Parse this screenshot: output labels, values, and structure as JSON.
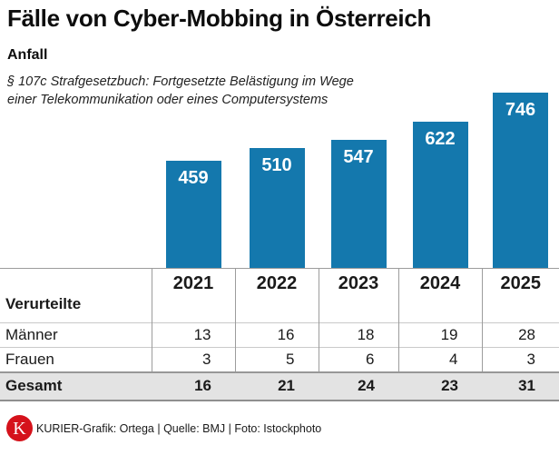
{
  "header": {
    "title": "Fälle von Cyber-Mobbing in Österreich",
    "section_label": "Anfall",
    "legal_note_line1": "§ 107c Strafgesetzbuch: Fortgesetzte Belästigung im Wege",
    "legal_note_line2": "einer Telekommunikation oder eines Computersystems"
  },
  "chart_data": {
    "type": "bar",
    "title": "Anfall — Fälle von Cyber-Mobbing in Österreich",
    "categories": [
      "2021",
      "2022",
      "2023",
      "2024",
      "2025"
    ],
    "values": [
      459,
      510,
      547,
      622,
      746
    ],
    "xlabel": "",
    "ylabel": "",
    "ylim": [
      0,
      760
    ],
    "grid": false,
    "legend": "none",
    "bar_labels_inside_top": true,
    "bar_color": "#1478ad",
    "bar_label_color": "#ffffff"
  },
  "table": {
    "row_header": "Verurteilte",
    "columns": [
      "2021",
      "2022",
      "2023",
      "2024",
      "2025"
    ],
    "rows": [
      {
        "label": "Männer",
        "values": [
          "13",
          "16",
          "18",
          "19",
          "28"
        ],
        "total": false
      },
      {
        "label": "Frauen",
        "values": [
          "3",
          "5",
          "6",
          "4",
          "3"
        ],
        "total": false
      },
      {
        "label": "Gesamt",
        "values": [
          "16",
          "21",
          "24",
          "23",
          "31"
        ],
        "total": true
      }
    ],
    "total_row_bg": "#e3e3e3"
  },
  "footer": {
    "logo_letter": "K",
    "logo_color": "#d5121b",
    "credit": "KURIER-Grafik: Ortega | Quelle: BMJ | Foto: Istockphoto"
  }
}
